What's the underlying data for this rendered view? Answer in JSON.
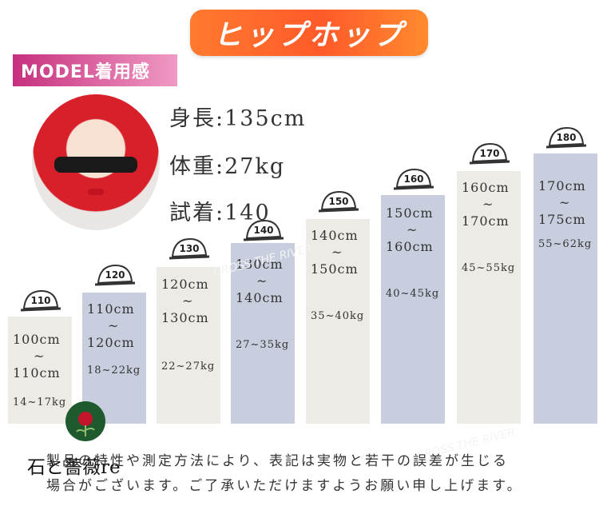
{
  "banner": {
    "title": "ヒップホップ"
  },
  "model": {
    "tag": "MODEL着用感",
    "stats": [
      {
        "label": "身長:135cm"
      },
      {
        "label": "体重:27kg"
      },
      {
        "label": "試着:140"
      }
    ]
  },
  "sizes": [
    {
      "size": "110",
      "height_line1": "100cm",
      "tilde": "~",
      "height_line2": "110cm",
      "weight": "14~17kg"
    },
    {
      "size": "120",
      "height_line1": "110cm",
      "tilde": "~",
      "height_line2": "120cm",
      "weight": "18~22kg"
    },
    {
      "size": "130",
      "height_line1": "120cm",
      "tilde": "~",
      "height_line2": "130cm",
      "weight": "22~27kg"
    },
    {
      "size": "140",
      "height_line1": "130cm",
      "tilde": "~",
      "height_line2": "140cm",
      "weight": "27~35kg"
    },
    {
      "size": "150",
      "height_line1": "140cm",
      "tilde": "~",
      "height_line2": "150cm",
      "weight": "35~40kg"
    },
    {
      "size": "160",
      "height_line1": "150cm",
      "tilde": "~",
      "height_line2": "160cm",
      "weight": "40~45kg"
    },
    {
      "size": "170",
      "height_line1": "160cm",
      "tilde": "~",
      "height_line2": "170cm",
      "weight": "45~55kg"
    },
    {
      "size": "180",
      "height_line1": "170cm",
      "tilde": "~",
      "height_line2": "175cm",
      "weight": "55~62kg"
    }
  ],
  "note": {
    "line1": "製品の特性や測定方法により、表記は実物と若干の誤差が生じる",
    "line2": "場合がございます。ご了承いただけますようお願い申し上げます。"
  },
  "logo": {
    "text": "石と薔薇re"
  },
  "watermark": {
    "text": "CROSS THE RIVER"
  },
  "colors": {
    "banner": "#ff6a2c",
    "model_tag": "#d04e96",
    "bar_grey": "#ecebe6",
    "bar_blue": "#c8cede"
  }
}
